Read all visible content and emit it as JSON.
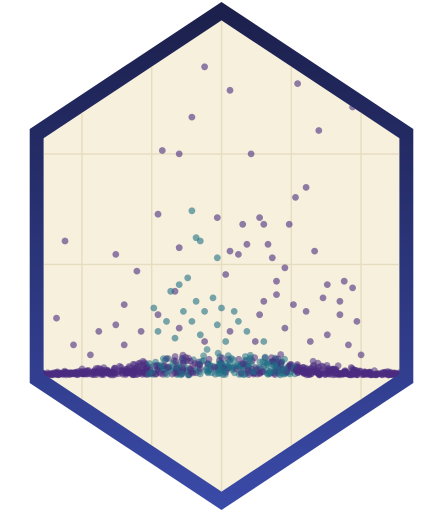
{
  "logo": {
    "name": "hex-scatter-logo",
    "colors": {
      "background": "#f6f0dd",
      "grid": "#e6dcbf",
      "border_top": "#1b1f4a",
      "border_bottom": "#3a4aa8",
      "point_purple": "#4b2c7f",
      "point_teal": "#1f6f86"
    }
  },
  "chart_data": {
    "type": "scatter",
    "xlim": [
      -1,
      1
    ],
    "ylim": [
      0,
      1
    ],
    "grid": true,
    "legend": "none",
    "series": [
      {
        "values": [
          [
            -0.08,
            0.92
          ],
          [
            0.04,
            0.85
          ],
          [
            0.36,
            0.87
          ],
          [
            0.62,
            0.8
          ],
          [
            -0.14,
            0.77
          ],
          [
            0.46,
            0.73
          ],
          [
            -0.28,
            0.67
          ],
          [
            -0.2,
            0.66
          ],
          [
            0.14,
            0.66
          ],
          [
            0.4,
            0.56
          ],
          [
            0.35,
            0.53
          ],
          [
            -0.3,
            0.48
          ],
          [
            -0.02,
            0.47
          ],
          [
            0.1,
            0.45
          ],
          [
            0.18,
            0.47
          ],
          [
            0.2,
            0.45
          ],
          [
            0.32,
            0.45
          ],
          [
            -0.74,
            0.4
          ],
          [
            0.12,
            0.39
          ],
          [
            -0.2,
            0.38
          ],
          [
            0.22,
            0.39
          ],
          [
            0.44,
            0.37
          ],
          [
            -0.5,
            0.36
          ],
          [
            0.04,
            0.37
          ],
          [
            0.08,
            0.36
          ],
          [
            0.24,
            0.35
          ],
          [
            0.3,
            0.32
          ],
          [
            -0.4,
            0.31
          ],
          [
            0.02,
            0.3
          ],
          [
            0.26,
            0.28
          ],
          [
            0.5,
            0.27
          ],
          [
            0.58,
            0.28
          ],
          [
            0.62,
            0.26
          ],
          [
            -0.22,
            0.25
          ],
          [
            0.48,
            0.23
          ],
          [
            0.2,
            0.22
          ],
          [
            -0.46,
            0.21
          ],
          [
            0.26,
            0.24
          ],
          [
            0.34,
            0.21
          ],
          [
            0.56,
            0.22
          ],
          [
            -0.78,
            0.17
          ],
          [
            -0.5,
            0.15
          ],
          [
            -0.3,
            0.18
          ],
          [
            0.18,
            0.18
          ],
          [
            0.4,
            0.19
          ],
          [
            0.56,
            0.18
          ],
          [
            0.64,
            0.16
          ],
          [
            -0.58,
            0.13
          ],
          [
            -0.38,
            0.13
          ],
          [
            -0.2,
            0.14
          ],
          [
            0.04,
            0.13
          ],
          [
            0.3,
            0.14
          ],
          [
            0.5,
            0.12
          ],
          [
            -0.7,
            0.09
          ],
          [
            -0.46,
            0.09
          ],
          [
            -0.08,
            0.1
          ],
          [
            0.16,
            0.1
          ],
          [
            0.42,
            0.1
          ],
          [
            0.6,
            0.09
          ],
          [
            -0.62,
            0.06
          ],
          [
            0.66,
            0.06
          ]
        ]
      },
      {
        "values": [
          [
            -0.14,
            0.49
          ],
          [
            -0.12,
            0.41
          ],
          [
            -0.1,
            0.4
          ],
          [
            -0.02,
            0.35
          ],
          [
            -0.16,
            0.29
          ],
          [
            -0.2,
            0.27
          ],
          [
            -0.24,
            0.25
          ],
          [
            -0.12,
            0.22
          ],
          [
            -0.04,
            0.23
          ],
          [
            -0.32,
            0.2
          ],
          [
            -0.18,
            0.19
          ],
          [
            -0.08,
            0.19
          ],
          [
            0.0,
            0.2
          ],
          [
            0.06,
            0.19
          ],
          [
            -0.26,
            0.16
          ],
          [
            -0.14,
            0.16
          ],
          [
            -0.02,
            0.15
          ],
          [
            0.08,
            0.16
          ],
          [
            -0.3,
            0.13
          ],
          [
            -0.1,
            0.12
          ],
          [
            0.12,
            0.13
          ],
          [
            -0.22,
            0.11
          ],
          [
            0.02,
            0.1
          ],
          [
            0.2,
            0.1
          ]
        ]
      }
    ]
  }
}
